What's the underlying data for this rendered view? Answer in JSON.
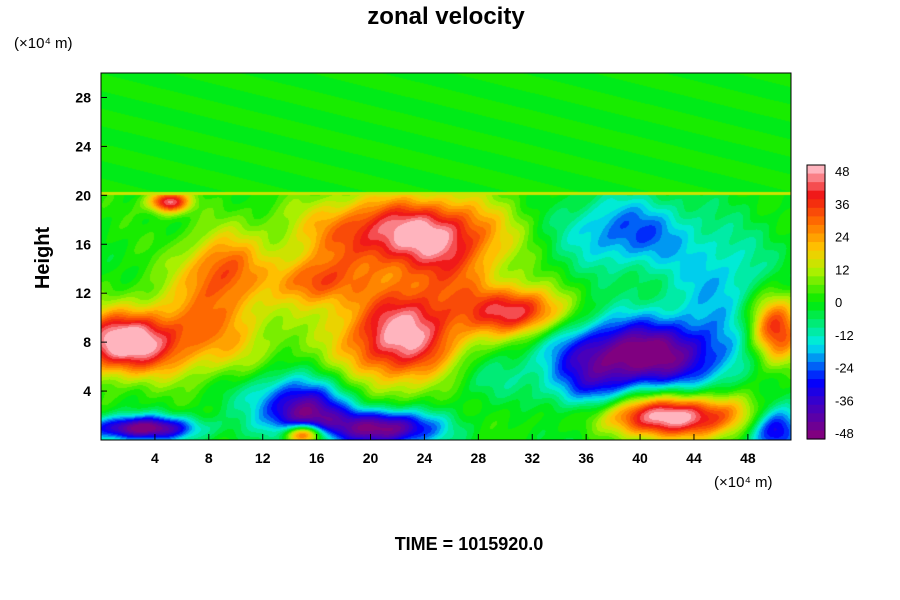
{
  "chart_data": {
    "type": "heatmap",
    "title": "zonal velocity",
    "ylabel": "Height",
    "x_unit": "(×10⁴ m)",
    "y_unit": "(×10⁴ m)",
    "footer": "TIME = 1015920.0",
    "x_ticks": [
      "4",
      "8",
      "12",
      "16",
      "20",
      "24",
      "28",
      "32",
      "36",
      "40",
      "44",
      "48"
    ],
    "y_ticks": [
      "4",
      "8",
      "12",
      "16",
      "20",
      "24",
      "28"
    ],
    "colorbar_ticks": [
      "48",
      "36",
      "24",
      "12",
      "0",
      "-12",
      "-24",
      "-36",
      "-48"
    ],
    "xlim": [
      0,
      51.2
    ],
    "ylim": [
      0,
      30
    ],
    "clim": [
      -48,
      48
    ],
    "tropopause_height": 20.2,
    "background_value": 0,
    "features": [
      {
        "x": 40,
        "y": 7,
        "rx": 6.5,
        "ry": 3,
        "value": -50
      },
      {
        "x": 42,
        "y": 2,
        "rx": 6.5,
        "ry": 1.8,
        "value": 50
      },
      {
        "x": 22,
        "y": 8.5,
        "rx": 4.5,
        "ry": 4,
        "value": 46
      },
      {
        "x": 22,
        "y": 17,
        "rx": 7,
        "ry": 3,
        "value": 42
      },
      {
        "x": 1.5,
        "y": 8,
        "rx": 4,
        "ry": 2.5,
        "value": 50
      },
      {
        "x": 31,
        "y": 10.5,
        "rx": 3.5,
        "ry": 2,
        "value": 40
      },
      {
        "x": 5,
        "y": 19.5,
        "rx": 1.5,
        "ry": 0.9,
        "value": 44
      },
      {
        "x": 16,
        "y": 13,
        "rx": 3,
        "ry": 2,
        "value": 28
      },
      {
        "x": 9,
        "y": 14,
        "rx": 3,
        "ry": 3,
        "value": 28
      },
      {
        "x": 8,
        "y": 9,
        "rx": 5,
        "ry": 4,
        "value": 22
      },
      {
        "x": 26,
        "y": 14,
        "rx": 4,
        "ry": 5,
        "value": 18
      },
      {
        "x": 21,
        "y": 1,
        "rx": 4,
        "ry": 1.5,
        "value": -48
      },
      {
        "x": 15,
        "y": 2,
        "rx": 3,
        "ry": 2,
        "value": -38
      },
      {
        "x": 3,
        "y": 1,
        "rx": 4,
        "ry": 1,
        "value": -48
      },
      {
        "x": 50,
        "y": 1,
        "rx": 2,
        "ry": 2,
        "value": -40
      },
      {
        "x": 39,
        "y": 17,
        "rx": 5,
        "ry": 3,
        "value": -24
      },
      {
        "x": 46,
        "y": 13,
        "rx": 4,
        "ry": 4,
        "value": -16
      },
      {
        "x": 36,
        "y": 3,
        "rx": 3,
        "ry": 3,
        "value": -20
      },
      {
        "x": 14,
        "y": 4,
        "rx": 5,
        "ry": 2,
        "value": -16
      },
      {
        "x": 50,
        "y": 9,
        "rx": 2,
        "ry": 3,
        "value": 38
      },
      {
        "x": 15,
        "y": 0.5,
        "rx": 1.5,
        "ry": 0.8,
        "value": 48
      },
      {
        "x": 28,
        "y": 5,
        "rx": 3,
        "ry": 2,
        "value": -8
      }
    ]
  }
}
